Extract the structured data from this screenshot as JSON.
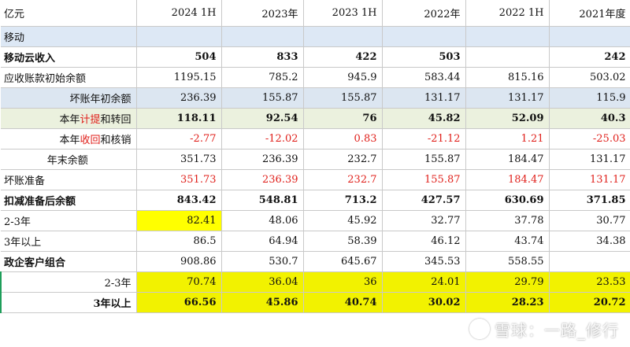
{
  "headers": [
    "亿元",
    "2024 1H",
    "2023年",
    "2023 1H",
    "2022年",
    "2022 1H",
    "2021年度"
  ],
  "section_mobile": "移动",
  "rows": [
    {
      "label": "移动云收入",
      "values": [
        "504",
        "833",
        "422",
        "503",
        "",
        "242"
      ]
    },
    {
      "label": "应收账款初始余额",
      "values": [
        "1195.15",
        "785.2",
        "945.9",
        "583.44",
        "815.16",
        "503.02"
      ]
    },
    {
      "label": "坏账年初余额",
      "values": [
        "236.39",
        "155.87",
        "155.87",
        "131.17",
        "131.17",
        "115.9"
      ]
    },
    {
      "label_parts": [
        "本年",
        "计提",
        "和转回"
      ],
      "values": [
        "118.11",
        "92.54",
        "76",
        "45.82",
        "52.09",
        "40.3"
      ]
    },
    {
      "label_parts": [
        "本年",
        "收回",
        "和核销"
      ],
      "values": [
        "-2.77",
        "-12.02",
        "0.83",
        "-21.12",
        "1.21",
        "-25.03"
      ]
    },
    {
      "label": "年末余额",
      "values": [
        "351.73",
        "236.39",
        "232.7",
        "155.87",
        "184.47",
        "131.17"
      ]
    },
    {
      "label": "坏账准备",
      "values": [
        "351.73",
        "236.39",
        "232.7",
        "155.87",
        "184.47",
        "131.17"
      ]
    },
    {
      "label": "扣减准备后余额",
      "values": [
        "843.42",
        "548.81",
        "713.2",
        "427.57",
        "630.69",
        "371.85"
      ]
    },
    {
      "label": "2-3年",
      "values": [
        "82.41",
        "48.06",
        "45.92",
        "32.77",
        "37.78",
        "30.77"
      ]
    },
    {
      "label": "3年以上",
      "values": [
        "86.5",
        "64.94",
        "58.39",
        "46.12",
        "43.74",
        "34.38"
      ]
    },
    {
      "label": "政企客户组合",
      "values": [
        "908.86",
        "530.7",
        "645.67",
        "345.53",
        "558.55",
        ""
      ]
    },
    {
      "label": "2-3年",
      "values": [
        "70.74",
        "36.04",
        "36",
        "24.01",
        "29.79",
        "23.53"
      ]
    },
    {
      "label": "3年以上",
      "values": [
        "66.56",
        "45.86",
        "40.74",
        "30.02",
        "28.23",
        "20.72"
      ]
    }
  ],
  "watermark": "雪球：一路_修行"
}
